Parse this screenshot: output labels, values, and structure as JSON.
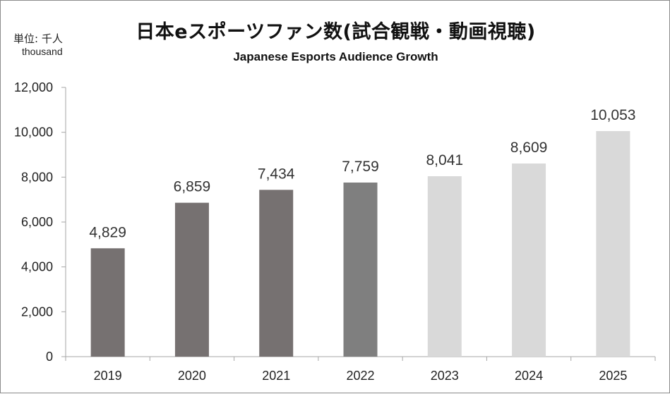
{
  "chart_data": {
    "type": "bar",
    "title": "日本eスポーツファン数(試合観戦・動画視聴)",
    "subtitle": "Japanese Esports Audience Growth",
    "unit_label": "単位: 千人",
    "unit_label_en": "thousand",
    "categories": [
      "2019",
      "2020",
      "2021",
      "2022",
      "2023",
      "2024",
      "2025"
    ],
    "values": [
      4829,
      6859,
      7434,
      7759,
      8041,
      8609,
      10053
    ],
    "data_labels": [
      "4,829",
      "6,859",
      "7,434",
      "7,759",
      "8,041",
      "8,609",
      "10,053"
    ],
    "bar_colors": [
      "#767171",
      "#767171",
      "#767171",
      "#7f7f7f",
      "#d9d9d9",
      "#d9d9d9",
      "#d9d9d9"
    ],
    "ylim": [
      0,
      12000
    ],
    "yticks": [
      0,
      2000,
      4000,
      6000,
      8000,
      10000,
      12000
    ],
    "ytick_labels": [
      "0",
      "2,000",
      "4,000",
      "6,000",
      "8,000",
      "10,000",
      "12,000"
    ],
    "xlabel": "",
    "ylabel": "",
    "grid": false,
    "legend": "none"
  }
}
